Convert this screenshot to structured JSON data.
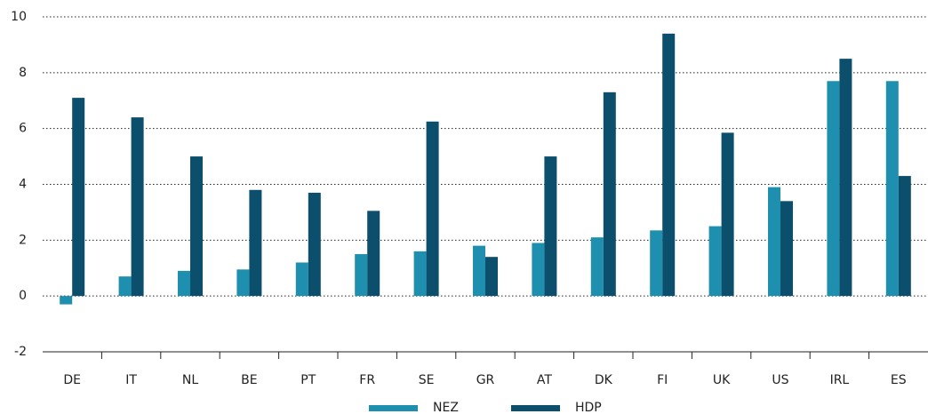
{
  "chart_data": {
    "type": "bar",
    "categories": [
      "DE",
      "IT",
      "NL",
      "BE",
      "PT",
      "FR",
      "SE",
      "GR",
      "AT",
      "DK",
      "FI",
      "UK",
      "US",
      "IRL",
      "ES"
    ],
    "series": [
      {
        "name": "NEZ",
        "color": "#1e8fae",
        "values": [
          -0.3,
          0.7,
          0.9,
          0.95,
          1.2,
          1.5,
          1.6,
          1.8,
          1.9,
          2.1,
          2.35,
          2.5,
          3.9,
          7.7,
          7.7
        ]
      },
      {
        "name": "HDP",
        "color": "#0b4f6c",
        "values": [
          7.1,
          6.4,
          5.0,
          3.8,
          3.7,
          3.05,
          6.25,
          1.4,
          5.0,
          7.3,
          9.4,
          5.85,
          3.4,
          8.5,
          4.3
        ]
      }
    ],
    "ylim": [
      -2,
      10
    ],
    "yticks": [
      -2,
      0,
      2,
      4,
      6,
      8,
      10
    ],
    "grid": true,
    "legend": "bottom"
  }
}
